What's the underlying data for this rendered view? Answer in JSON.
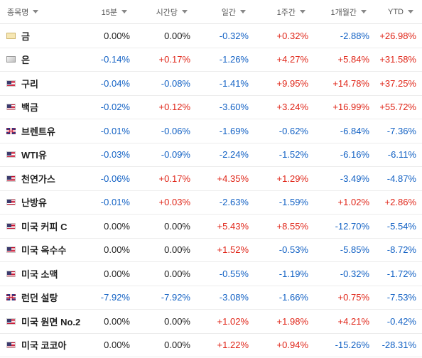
{
  "header": {
    "name": "종목명",
    "col15m": "15분",
    "colHourly": "시간당",
    "colDaily": "일간",
    "colWeekly": "1주간",
    "colMonthly": "1개월간",
    "colYtd": "YTD"
  },
  "rows": [
    {
      "name": "금",
      "flag": "gold",
      "m15": "0.00%",
      "hourly": "0.00%",
      "daily": "-0.32%",
      "weekly": "+0.32%",
      "monthly": "-2.88%",
      "ytd": "+26.98%"
    },
    {
      "name": "은",
      "flag": "silver",
      "m15": "-0.14%",
      "hourly": "+0.17%",
      "daily": "-1.26%",
      "weekly": "+4.27%",
      "monthly": "+5.84%",
      "ytd": "+31.58%"
    },
    {
      "name": "구리",
      "flag": "us",
      "m15": "-0.04%",
      "hourly": "-0.08%",
      "daily": "-1.41%",
      "weekly": "+9.95%",
      "monthly": "+14.78%",
      "ytd": "+37.25%"
    },
    {
      "name": "백금",
      "flag": "us",
      "m15": "-0.02%",
      "hourly": "+0.12%",
      "daily": "-3.60%",
      "weekly": "+3.24%",
      "monthly": "+16.99%",
      "ytd": "+55.72%"
    },
    {
      "name": "브렌트유",
      "flag": "gb",
      "m15": "-0.01%",
      "hourly": "-0.06%",
      "daily": "-1.69%",
      "weekly": "-0.62%",
      "monthly": "-6.84%",
      "ytd": "-7.36%"
    },
    {
      "name": "WTI유",
      "flag": "us",
      "m15": "-0.03%",
      "hourly": "-0.09%",
      "daily": "-2.24%",
      "weekly": "-1.52%",
      "monthly": "-6.16%",
      "ytd": "-6.11%"
    },
    {
      "name": "천연가스",
      "flag": "us",
      "m15": "-0.06%",
      "hourly": "+0.17%",
      "daily": "+4.35%",
      "weekly": "+1.29%",
      "monthly": "-3.49%",
      "ytd": "-4.87%"
    },
    {
      "name": "난방유",
      "flag": "us",
      "m15": "-0.01%",
      "hourly": "+0.03%",
      "daily": "-2.63%",
      "weekly": "-1.59%",
      "monthly": "+1.02%",
      "ytd": "+2.86%"
    },
    {
      "name": "미국 커피 C",
      "flag": "us",
      "m15": "0.00%",
      "hourly": "0.00%",
      "daily": "+5.43%",
      "weekly": "+8.55%",
      "monthly": "-12.70%",
      "ytd": "-5.54%"
    },
    {
      "name": "미국 옥수수",
      "flag": "us",
      "m15": "0.00%",
      "hourly": "0.00%",
      "daily": "+1.52%",
      "weekly": "-0.53%",
      "monthly": "-5.85%",
      "ytd": "-8.72%"
    },
    {
      "name": "미국 소맥",
      "flag": "us",
      "m15": "0.00%",
      "hourly": "0.00%",
      "daily": "-0.55%",
      "weekly": "-1.19%",
      "monthly": "-0.32%",
      "ytd": "-1.72%"
    },
    {
      "name": "런던 설탕",
      "flag": "gb",
      "m15": "-7.92%",
      "hourly": "-7.92%",
      "daily": "-3.08%",
      "weekly": "-1.66%",
      "monthly": "+0.75%",
      "ytd": "-7.53%"
    },
    {
      "name": "미국 원면 No.2",
      "flag": "us",
      "m15": "0.00%",
      "hourly": "0.00%",
      "daily": "+1.02%",
      "weekly": "+1.98%",
      "monthly": "+4.21%",
      "ytd": "-0.42%"
    },
    {
      "name": "미국 코코아",
      "flag": "us",
      "m15": "0.00%",
      "hourly": "0.00%",
      "daily": "+1.22%",
      "weekly": "+0.94%",
      "monthly": "-15.26%",
      "ytd": "-28.31%"
    }
  ],
  "colors": {
    "positive": "#e0271a",
    "negative": "#1261c4",
    "neutral": "#222222"
  }
}
